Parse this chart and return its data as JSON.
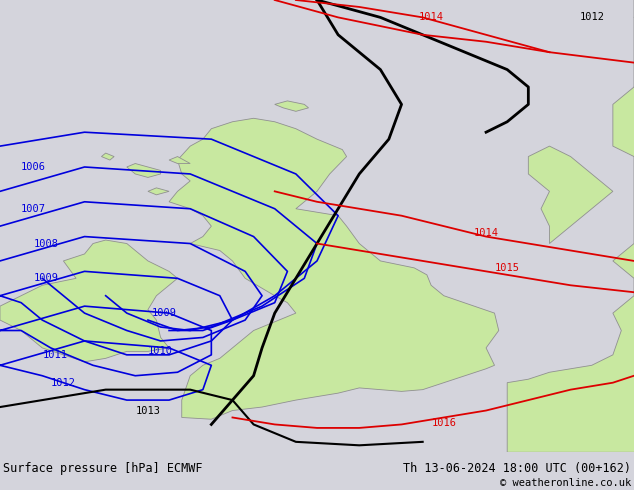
{
  "title_left": "Surface pressure [hPa] ECMWF",
  "title_right": "Th 13-06-2024 18:00 UTC (00+162)",
  "copyright": "© weatheronline.co.uk",
  "bg_color": "#d4d4dc",
  "land_color": "#c8e8a0",
  "land_border_color": "#909090",
  "blue_color": "#0000dd",
  "red_color": "#dd0000",
  "black_color": "#000000",
  "footer_bg": "#e0e0e0",
  "title_fontsize": 8.5,
  "label_fontsize": 7.5,
  "figsize": [
    6.34,
    4.9
  ],
  "dpi": 100
}
